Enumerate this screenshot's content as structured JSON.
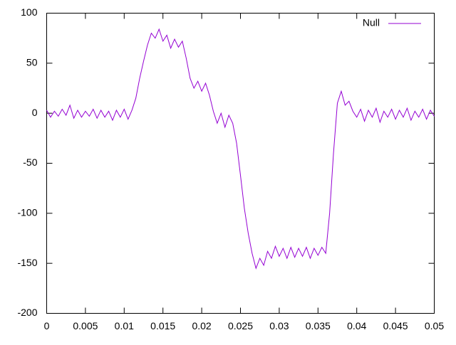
{
  "chart_data": {
    "type": "line",
    "x": [
      0,
      0.0005,
      0.001,
      0.0015,
      0.002,
      0.0025,
      0.003,
      0.0035,
      0.004,
      0.0045,
      0.005,
      0.0055,
      0.006,
      0.0065,
      0.007,
      0.0075,
      0.008,
      0.0085,
      0.009,
      0.0095,
      0.01,
      0.0105,
      0.011,
      0.0115,
      0.012,
      0.0125,
      0.013,
      0.0135,
      0.014,
      0.0145,
      0.015,
      0.0155,
      0.016,
      0.0165,
      0.017,
      0.0175,
      0.018,
      0.0185,
      0.019,
      0.0195,
      0.02,
      0.0205,
      0.021,
      0.0215,
      0.022,
      0.0225,
      0.023,
      0.0235,
      0.024,
      0.0245,
      0.025,
      0.0255,
      0.026,
      0.0265,
      0.027,
      0.0275,
      0.028,
      0.0285,
      0.029,
      0.0295,
      0.03,
      0.0305,
      0.031,
      0.0315,
      0.032,
      0.0325,
      0.033,
      0.0335,
      0.034,
      0.0345,
      0.035,
      0.0355,
      0.036,
      0.0365,
      0.037,
      0.0375,
      0.038,
      0.0385,
      0.039,
      0.0395,
      0.04,
      0.0405,
      0.041,
      0.0415,
      0.042,
      0.0425,
      0.043,
      0.0435,
      0.044,
      0.0445,
      0.045,
      0.0455,
      0.046,
      0.0465,
      0.047,
      0.0475,
      0.048,
      0.0485,
      0.049,
      0.0495,
      0.05
    ],
    "series": [
      {
        "name": "Null",
        "color": "#9400d3",
        "values": [
          3,
          -4,
          2,
          -3,
          4,
          -2,
          8,
          -5,
          3,
          -4,
          2,
          -3,
          4,
          -5,
          3,
          -4,
          2,
          -7,
          3,
          -4,
          4,
          -6,
          3,
          15,
          35,
          52,
          68,
          80,
          75,
          84,
          72,
          78,
          65,
          74,
          66,
          72,
          55,
          35,
          25,
          32,
          22,
          30,
          18,
          2,
          -10,
          0,
          -14,
          -2,
          -10,
          -30,
          -62,
          -95,
          -120,
          -140,
          -155,
          -145,
          -152,
          -138,
          -145,
          -133,
          -143,
          -135,
          -145,
          -134,
          -144,
          -135,
          -143,
          -134,
          -145,
          -135,
          -142,
          -134,
          -140,
          -100,
          -40,
          10,
          22,
          8,
          12,
          2,
          -4,
          4,
          -8,
          3,
          -4,
          5,
          -9,
          2,
          -4,
          4,
          -6,
          3,
          -4,
          5,
          -7,
          2,
          -4,
          4,
          -6,
          3,
          -3
        ]
      }
    ],
    "xlim": [
      0,
      0.05
    ],
    "xticks": [
      0,
      0.005,
      0.01,
      0.015,
      0.02,
      0.025,
      0.03,
      0.035,
      0.04,
      0.045,
      0.05
    ],
    "ylim": [
      -200,
      100
    ],
    "yticks": [
      100,
      50,
      0,
      -50,
      -100,
      -150,
      -200
    ],
    "legend": "top-right"
  }
}
